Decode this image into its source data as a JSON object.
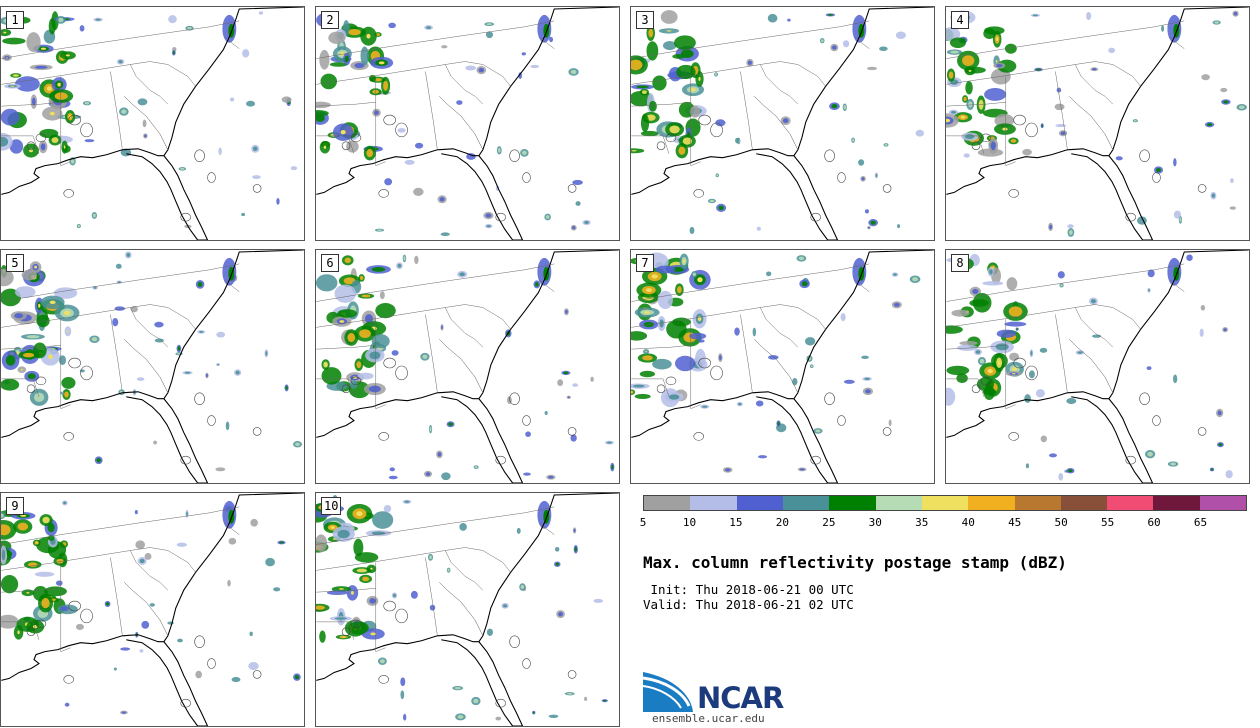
{
  "panels": [
    {
      "number": "1"
    },
    {
      "number": "2"
    },
    {
      "number": "3"
    },
    {
      "number": "4"
    },
    {
      "number": "5"
    },
    {
      "number": "6"
    },
    {
      "number": "7"
    },
    {
      "number": "8"
    },
    {
      "number": "9"
    },
    {
      "number": "10"
    }
  ],
  "colorbar": {
    "colors": [
      "#a0a0a0",
      "#b4bde8",
      "#5060d0",
      "#4a9098",
      "#008000",
      "#b6dcb6",
      "#f0e060",
      "#f0b020",
      "#b87830",
      "#885038",
      "#f04c74",
      "#70183c",
      "#b050a8"
    ],
    "ticks": [
      "5",
      "10",
      "15",
      "20",
      "25",
      "30",
      "35",
      "40",
      "45",
      "50",
      "55",
      "60",
      "65"
    ],
    "unit": "dBZ"
  },
  "title": "Max. column reflectivity postage stamp (dBZ)",
  "init": " Init: Thu 2018-06-21 00 UTC",
  "valid": "Valid: Thu 2018-06-21 02 UTC",
  "logo": {
    "name": "NCAR",
    "url": "ensemble.ucar.edu"
  }
}
